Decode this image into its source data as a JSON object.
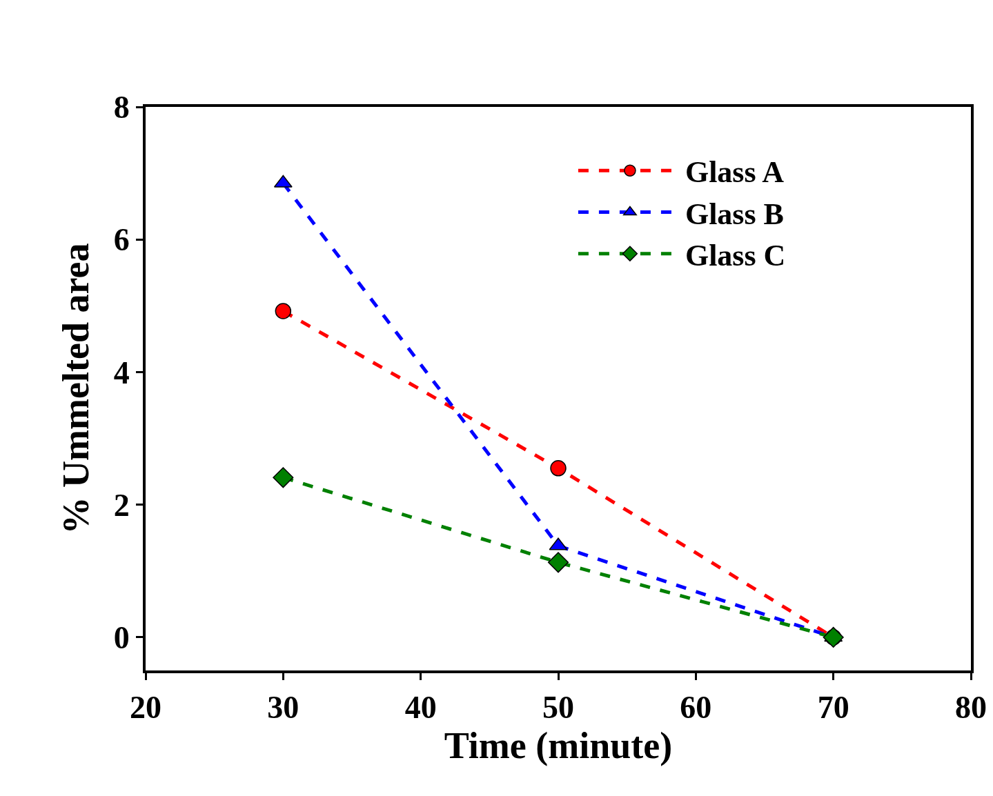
{
  "chart_data": {
    "type": "line",
    "xlabel": "Time (minute)",
    "ylabel": "% Ummelted area",
    "x": [
      30,
      50,
      70
    ],
    "series": [
      {
        "name": "Glass A",
        "color": "#ff0000",
        "values": [
          4.92,
          2.55,
          0
        ],
        "marker": "circle",
        "line_style": "dashed"
      },
      {
        "name": "Glass B",
        "color": "#0000ff",
        "values": [
          6.85,
          1.38,
          0
        ],
        "marker": "triangle",
        "line_style": "dashed"
      },
      {
        "name": "Glass C",
        "color": "#008000",
        "values": [
          2.41,
          1.13,
          0
        ],
        "marker": "diamond",
        "line_style": "dashed"
      }
    ],
    "xlim": [
      20,
      80
    ],
    "xticks": [
      20,
      30,
      40,
      50,
      60,
      70,
      80
    ],
    "ylim": [
      -0.5,
      8
    ],
    "yticks": [
      0,
      2,
      4,
      6,
      8
    ],
    "grid": false,
    "legend": "top right"
  }
}
